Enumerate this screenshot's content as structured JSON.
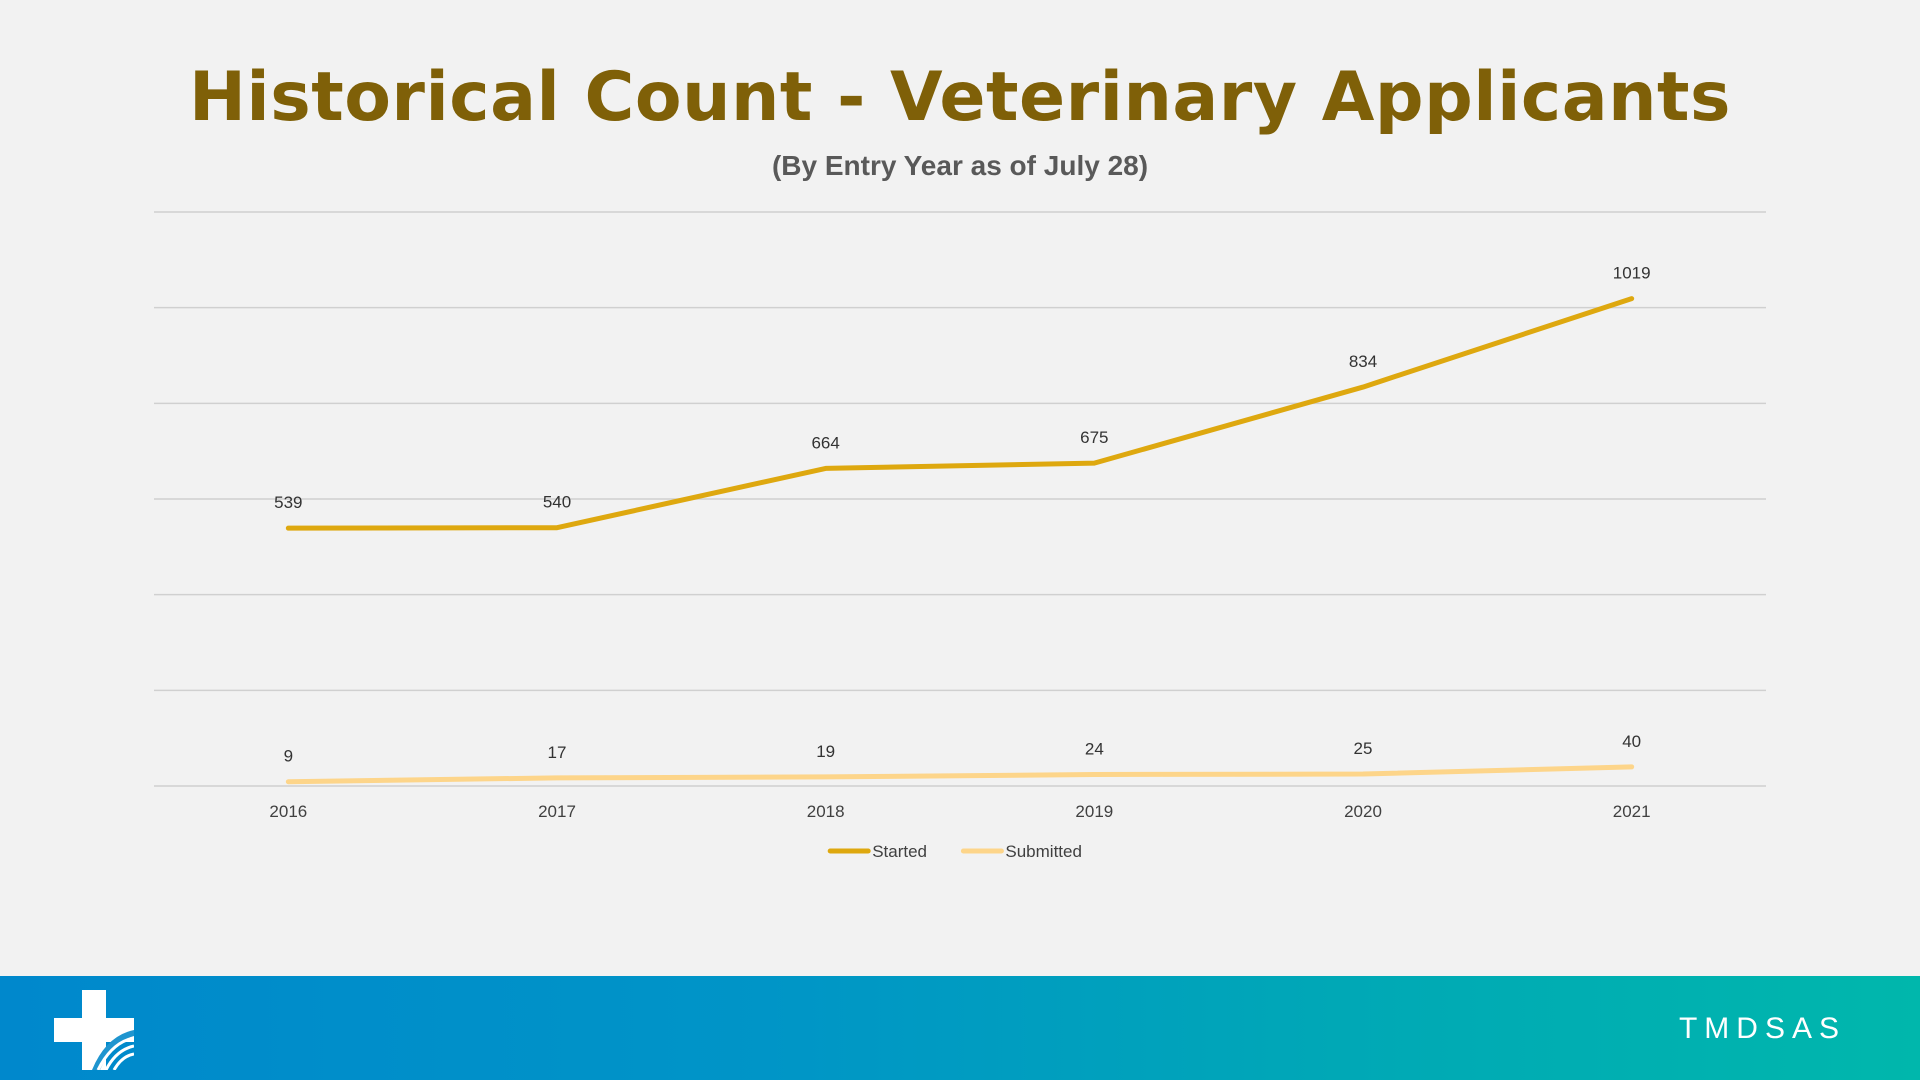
{
  "slide": {
    "title": "Historical Count - Veterinary Applicants",
    "subtitle": "(By Entry Year as of July 28)"
  },
  "footer": {
    "brand": "TMDSAS",
    "logo_icon": "medical-cross-logo-icon",
    "gradient_start": "#0088cc",
    "gradient_end": "#00b7ac"
  },
  "chart_data": {
    "type": "line",
    "title": "Historical Count - Veterinary Applicants",
    "subtitle": "(By Entry Year as of July 28)",
    "xlabel": "",
    "ylabel": "",
    "categories": [
      "2016",
      "2017",
      "2018",
      "2019",
      "2020",
      "2021"
    ],
    "ylim": [
      0,
      1200
    ],
    "grid": true,
    "legend_position": "bottom",
    "data_labels": true,
    "series": [
      {
        "name": "Started",
        "values": [
          539,
          540,
          664,
          675,
          834,
          1019
        ],
        "color": "#dea80f"
      },
      {
        "name": "Submitted",
        "values": [
          9,
          17,
          19,
          24,
          25,
          40
        ],
        "color": "#fdd58a"
      }
    ]
  }
}
